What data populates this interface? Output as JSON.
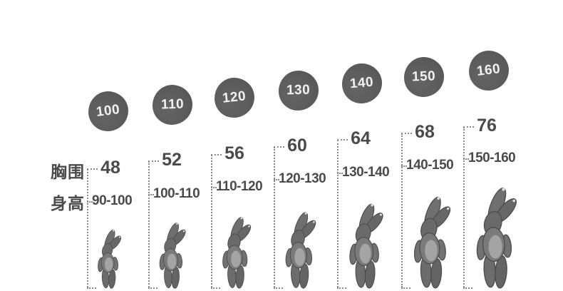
{
  "labels": {
    "chest": "胸围",
    "height": "身高"
  },
  "colors": {
    "background": "#ffffff",
    "badge": "#5c5c5c",
    "badge_text": "#f2f2f2",
    "text": "#4a4a4a",
    "guide_line": "#8a8a8a"
  },
  "sizes": [
    {
      "size": "100",
      "chest": "48",
      "height_range": "90-100"
    },
    {
      "size": "110",
      "chest": "52",
      "height_range": "100-110"
    },
    {
      "size": "120",
      "chest": "56",
      "height_range": "110-120"
    },
    {
      "size": "130",
      "chest": "60",
      "height_range": "120-130"
    },
    {
      "size": "140",
      "chest": "64",
      "height_range": "130-140"
    },
    {
      "size": "150",
      "chest": "68",
      "height_range": "140-150"
    },
    {
      "size": "160",
      "chest": "76",
      "height_range": "150-160"
    }
  ],
  "chart_data": {
    "type": "table",
    "row_labels": [
      "胸围",
      "身高"
    ],
    "sizes": [
      "100",
      "110",
      "120",
      "130",
      "140",
      "150",
      "160"
    ],
    "chest": [
      48,
      52,
      56,
      60,
      64,
      68,
      76
    ],
    "height_range": [
      "90-100",
      "100-110",
      "110-120",
      "120-130",
      "130-140",
      "140-150",
      "150-160"
    ]
  }
}
